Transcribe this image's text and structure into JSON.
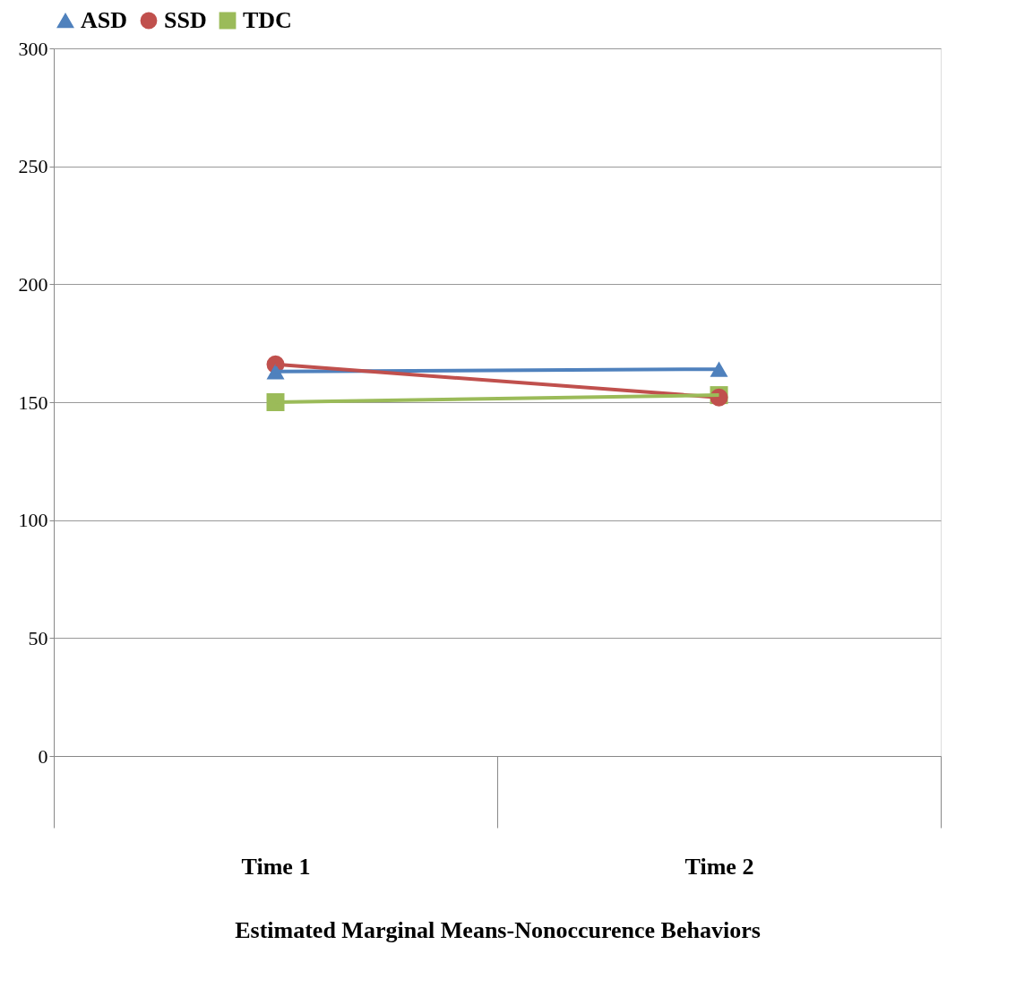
{
  "chart_data": {
    "type": "line",
    "xlabel": "Estimated Marginal Means-Nonoccurence Behaviors",
    "categories": [
      "Time 1",
      "Time 2"
    ],
    "series": [
      {
        "name": "ASD",
        "color": "#4f81bd",
        "marker": "triangle",
        "values": [
          163,
          164
        ]
      },
      {
        "name": "SSD",
        "color": "#c0504d",
        "marker": "circle",
        "values": [
          166,
          152
        ]
      },
      {
        "name": "TDC",
        "color": "#9bbb59",
        "marker": "square",
        "values": [
          150,
          153
        ]
      }
    ],
    "ylim": [
      0,
      300
    ],
    "yticks": [
      0,
      50,
      100,
      150,
      200,
      250,
      300
    ],
    "grid": "y",
    "legend": "top"
  }
}
